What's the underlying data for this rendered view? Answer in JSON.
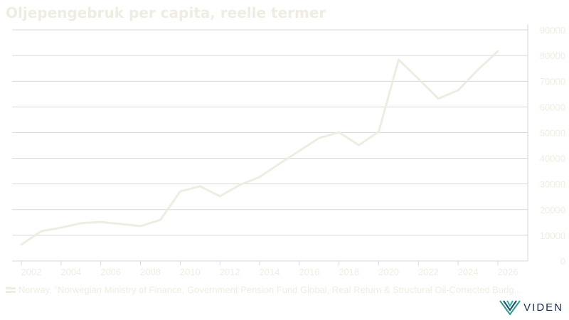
{
  "chart_data": {
    "type": "line",
    "title": "Oljepengebruk per capita, reelle termer",
    "xlabel": "",
    "ylabel": "",
    "x": [
      2001.5,
      2002.5,
      2003.5,
      2004.5,
      2005.5,
      2006.5,
      2007.5,
      2008.5,
      2009.5,
      2010.5,
      2011.5,
      2012.5,
      2013.5,
      2014.5,
      2015.5,
      2016.5,
      2017.5,
      2018.5,
      2019.5,
      2020.5,
      2021.5,
      2022.5,
      2023.5,
      2024.5,
      2025.5
    ],
    "series": [
      {
        "name": "Norway, \"Norwegian Ministry of Finance, Government Pension Fund Global, Real Return & Structural Oil-Corrected Budg...",
        "color": "#efede2",
        "values": [
          6400,
          11600,
          13000,
          14700,
          15200,
          14400,
          13600,
          16000,
          27100,
          29100,
          25200,
          29600,
          32700,
          37900,
          42900,
          47900,
          50100,
          45100,
          50400,
          78400,
          70900,
          63200,
          66500,
          74500,
          81700
        ]
      }
    ],
    "xlim": [
      2001,
      2027
    ],
    "ylim": [
      0,
      90000
    ],
    "xticks": [
      "2002",
      "2004",
      "2006",
      "2008",
      "2010",
      "2012",
      "2014",
      "2016",
      "2018",
      "2020",
      "2022",
      "2024",
      "2026"
    ],
    "yticks": [
      "0",
      "10000",
      "20000",
      "30000",
      "40000",
      "50000",
      "60000",
      "70000",
      "80000",
      "90000"
    ],
    "grid": true,
    "legend_position": "bottom-left"
  },
  "logo_text": "VIDEN"
}
